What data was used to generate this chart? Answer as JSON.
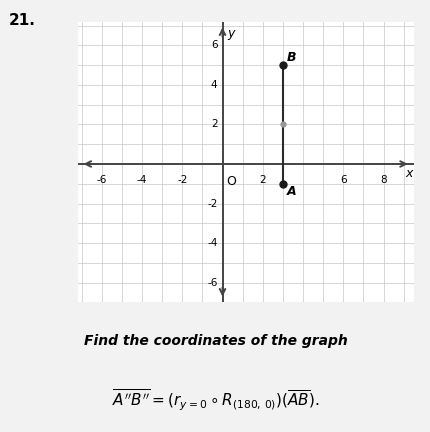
{
  "title_number": "21.",
  "A": [
    3,
    -1
  ],
  "B": [
    3,
    5
  ],
  "midpoint": [
    3,
    2
  ],
  "segment_color": "#2a2a2a",
  "point_color": "#1a1a1a",
  "midpoint_color": "#999999",
  "axis_color": "#444444",
  "grid_color": "#c8c8c8",
  "background_color": "#ffffff",
  "page_color": "#f2f2f2",
  "xlim": [
    -7.2,
    9.5
  ],
  "ylim": [
    -7,
    7.2
  ],
  "xticks": [
    -6,
    -4,
    -2,
    2,
    6,
    8
  ],
  "yticks": [
    -6,
    -4,
    -2,
    2,
    4,
    6
  ],
  "xlabel": "x",
  "ylabel": "y",
  "label_A": "A",
  "label_B": "B",
  "label_O": "O",
  "text_line1": "Find the coordinates of the graph",
  "text_line2": "$\\overline{A''B''} = (r_{y=0} \\circ R_{(180,\\, 0)})(\\overline{AB})$.",
  "font_size_labels": 9,
  "font_size_text": 10,
  "point_size": 5
}
